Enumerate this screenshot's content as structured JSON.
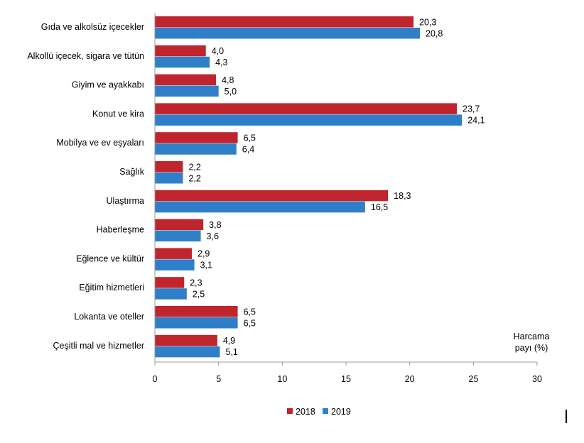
{
  "chart_data": {
    "type": "bar",
    "orientation": "horizontal",
    "categories": [
      "Gıda ve alkolsüz içecekler",
      "Alkollü içecek, sigara ve tütün",
      "Giyim ve ayakkabı",
      "Konut ve kira",
      "Mobilya ve ev eşyaları",
      "Sağlık",
      "Ulaştırma",
      "Haberleşme",
      "Eğlence ve kültür",
      "Eğitim hizmetleri",
      "Lokanta ve oteller",
      "Çeşitli mal ve hizmetler"
    ],
    "series": [
      {
        "name": "2018",
        "color": "#c0242c",
        "values": [
          20.3,
          4.0,
          4.8,
          23.7,
          6.5,
          2.2,
          18.3,
          3.8,
          2.9,
          2.3,
          6.5,
          4.9
        ],
        "labels": [
          "20,3",
          "4,0",
          "4,8",
          "23,7",
          "6,5",
          "2,2",
          "18,3",
          "3,8",
          "2,9",
          "2,3",
          "6,5",
          "4,9"
        ]
      },
      {
        "name": "2019",
        "color": "#2f7fc8",
        "values": [
          20.8,
          4.3,
          5.0,
          24.1,
          6.4,
          2.2,
          16.5,
          3.6,
          3.1,
          2.5,
          6.5,
          5.1
        ],
        "labels": [
          "20,8",
          "4,3",
          "5,0",
          "24,1",
          "6,4",
          "2,2",
          "16,5",
          "3,6",
          "3,1",
          "2,5",
          "6,5",
          "5,1"
        ]
      }
    ],
    "xlim": [
      0,
      30
    ],
    "xticks": [
      "0",
      "5",
      "10",
      "15",
      "20",
      "25",
      "30"
    ],
    "xlabel_lines": [
      "Harcama",
      "payı  (%)"
    ],
    "legend": {
      "placement": "bottom"
    },
    "grid": false
  }
}
